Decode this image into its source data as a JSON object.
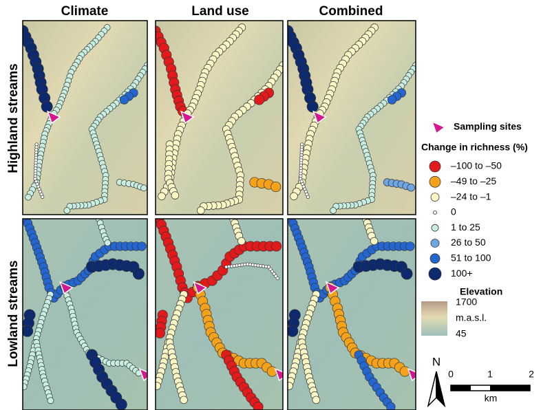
{
  "columns": [
    "Climate",
    "Land use",
    "Combined"
  ],
  "rows": [
    "Highland streams",
    "Lowland streams"
  ],
  "legend": {
    "sampling_sites": "Sampling sites",
    "richness_title": "Change in richness (%)",
    "items": [
      {
        "label": "–100 to –50",
        "color": "#e31a1c"
      },
      {
        "label": "–49 to –25",
        "color": "#f5a21b"
      },
      {
        "label": "–24 to –1",
        "color": "#fbf7c5"
      },
      {
        "label": "0",
        "color": "#ffffff"
      },
      {
        "label": "1 to 25",
        "color": "#c7eee0"
      },
      {
        "label": "26 to 50",
        "color": "#6fa5e3"
      },
      {
        "label": "51 to 100",
        "color": "#2466cf"
      },
      {
        "label": "100+",
        "color": "#0d2a6e"
      }
    ]
  },
  "elevation": {
    "title": "Elevation",
    "max": "1700",
    "unit": "m.a.s.l.",
    "min": "45"
  },
  "scale": {
    "north": "N",
    "ticks": [
      "0",
      "1",
      "2"
    ],
    "unit": "km"
  }
}
